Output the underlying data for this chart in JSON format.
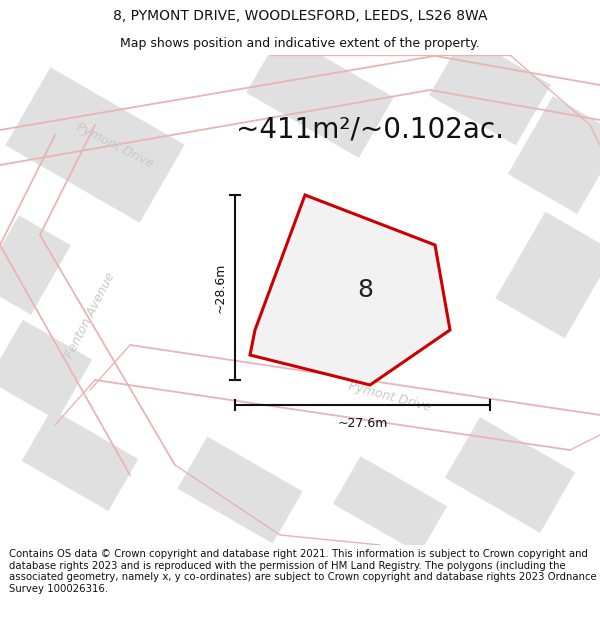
{
  "title_line1": "8, PYMONT DRIVE, WOODLESFORD, LEEDS, LS26 8WA",
  "title_line2": "Map shows position and indicative extent of the property.",
  "area_label": "~411m²/~0.102ac.",
  "plot_number": "8",
  "dim_horizontal": "~27.6m",
  "dim_vertical": "~28.6m",
  "street_label1": "Pymont Drive",
  "street_label2": "Fenton Avenue",
  "street_label3": "Pymont Drive",
  "footer_text": "Contains OS data © Crown copyright and database right 2021. This information is subject to Crown copyright and database rights 2023 and is reproduced with the permission of HM Land Registry. The polygons (including the associated geometry, namely x, y co-ordinates) are subject to Crown copyright and database rights 2023 Ordnance Survey 100026316.",
  "plot_color": "#cc0000",
  "block_color": "#e0e0e0",
  "road_color": "#e8b4b4",
  "map_bg": "#f8f8f8"
}
